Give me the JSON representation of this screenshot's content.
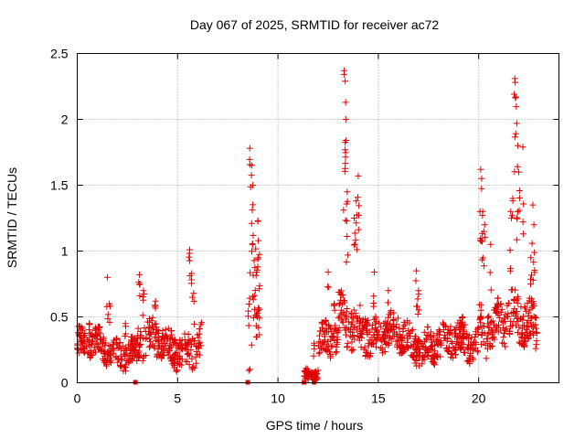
{
  "chart_data": {
    "type": "scatter",
    "title": "Day 067 of 2025, SRMTID for receiver ac72",
    "xlabel": "GPS time / hours",
    "ylabel": "SRMTID / TECUs",
    "xlim": [
      0,
      24
    ],
    "ylim": [
      0,
      2.5
    ],
    "xticks": [
      0,
      5,
      10,
      15,
      20
    ],
    "yticks": [
      0,
      0.5,
      1,
      1.5,
      2,
      2.5
    ],
    "ytick_labels": [
      "0",
      "0.5",
      "1",
      "1.5",
      "2",
      "2.5"
    ],
    "grid": true,
    "marker_color": "#e00000",
    "marker": "plus",
    "series": [
      {
        "name": "SRMTID",
        "segments": [
          {
            "x0": 0.0,
            "x1": 1.2,
            "base": 0.28,
            "amp": 0.12,
            "spikes": [
              [
                0.1,
                0.43
              ],
              [
                0.6,
                0.45
              ],
              [
                0.9,
                0.42
              ]
            ]
          },
          {
            "x0": 1.2,
            "x1": 3.0,
            "base": 0.25,
            "amp": 0.12,
            "spikes": [
              [
                1.5,
                0.8
              ],
              [
                1.6,
                0.6
              ],
              [
                2.4,
                0.45
              ]
            ]
          },
          {
            "x0": 3.0,
            "x1": 4.5,
            "base": 0.3,
            "amp": 0.15,
            "spikes": [
              [
                3.1,
                0.82
              ],
              [
                3.3,
                0.7
              ],
              [
                3.9,
                0.62
              ]
            ]
          },
          {
            "x0": 4.5,
            "x1": 6.2,
            "base": 0.28,
            "amp": 0.15,
            "spikes": [
              [
                5.6,
                1.01
              ],
              [
                5.7,
                0.83
              ],
              [
                5.8,
                0.68
              ]
            ]
          },
          {
            "x0": 8.5,
            "x1": 9.1,
            "base": 0.6,
            "amp": 0.5,
            "spikes": [
              [
                8.6,
                1.78
              ],
              [
                8.7,
                1.65
              ],
              [
                8.75,
                1.5
              ],
              [
                9.0,
                1.23
              ]
            ]
          },
          {
            "x0": 11.3,
            "x1": 12.0,
            "base": 0.06,
            "amp": 0.06,
            "spikes": [
              [
                11.8,
                0.3
              ]
            ]
          },
          {
            "x0": 12.0,
            "x1": 13.0,
            "base": 0.3,
            "amp": 0.15,
            "spikes": [
              [
                12.5,
                0.84
              ],
              [
                12.8,
                0.6
              ]
            ]
          },
          {
            "x0": 13.0,
            "x1": 14.5,
            "base": 0.45,
            "amp": 0.2,
            "spikes": [
              [
                13.3,
                2.37
              ],
              [
                13.35,
                2.29
              ],
              [
                13.38,
                2.0
              ],
              [
                13.4,
                1.84
              ],
              [
                13.45,
                1.45
              ],
              [
                13.8,
                1.25
              ],
              [
                14.0,
                1.57
              ],
              [
                13.9,
                1.38
              ]
            ]
          },
          {
            "x0": 14.5,
            "x1": 16.5,
            "base": 0.35,
            "amp": 0.15,
            "spikes": [
              [
                14.8,
                0.84
              ],
              [
                15.5,
                0.7
              ]
            ]
          },
          {
            "x0": 16.5,
            "x1": 18.5,
            "base": 0.3,
            "amp": 0.15,
            "spikes": [
              [
                16.9,
                0.85
              ],
              [
                17.0,
                0.7
              ]
            ]
          },
          {
            "x0": 18.5,
            "x1": 20.0,
            "base": 0.3,
            "amp": 0.15,
            "spikes": [
              [
                19.2,
                0.5
              ]
            ]
          },
          {
            "x0": 20.0,
            "x1": 21.0,
            "base": 0.45,
            "amp": 0.2,
            "spikes": [
              [
                20.1,
                1.62
              ],
              [
                20.15,
                1.55
              ],
              [
                20.2,
                1.3
              ],
              [
                20.3,
                1.2
              ],
              [
                20.6,
                1.05
              ]
            ]
          },
          {
            "x0": 21.0,
            "x1": 22.9,
            "base": 0.45,
            "amp": 0.2,
            "spikes": [
              [
                21.8,
                2.31
              ],
              [
                21.82,
                2.28
              ],
              [
                21.85,
                2.17
              ],
              [
                21.9,
                1.97
              ],
              [
                21.95,
                1.8
              ],
              [
                22.0,
                1.6
              ],
              [
                22.2,
                1.79
              ],
              [
                21.7,
                1.4
              ],
              [
                22.7,
                1.35
              ],
              [
                22.75,
                1.2
              ],
              [
                22.6,
                0.95
              ],
              [
                21.6,
                1.3
              ]
            ]
          }
        ],
        "squares": [
          [
            2.9,
            0.0
          ],
          [
            8.5,
            0.0
          ],
          [
            11.3,
            0.0
          ],
          [
            11.8,
            0.0
          ]
        ]
      }
    ]
  }
}
